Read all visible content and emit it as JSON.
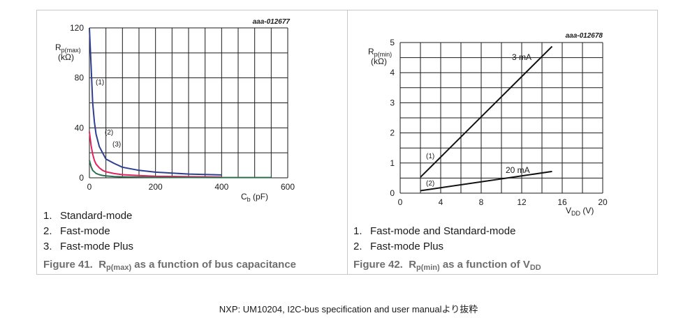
{
  "figures": [
    {
      "id": "fig41",
      "code": "aaa-012677",
      "caption": {
        "prefix": "Figure 41.",
        "sym": "R",
        "sub": "p(max)",
        "rest": " as a function of bus capacitance"
      },
      "legend": [
        {
          "num": "1.",
          "text": "Standard-mode"
        },
        {
          "num": "2.",
          "text": "Fast-mode"
        },
        {
          "num": "3.",
          "text": "Fast-mode Plus"
        }
      ],
      "chart_data": {
        "type": "line",
        "ylabel": {
          "main": "R",
          "sub": "p(max)",
          "unit": "(kΩ)"
        },
        "xlabel": {
          "main": "C",
          "sub": "b",
          "unit": " (pF)"
        },
        "xlim": [
          0,
          600
        ],
        "ylim": [
          0,
          120
        ],
        "xticks": [
          0,
          200,
          400,
          600
        ],
        "yticks": [
          0,
          40,
          80,
          120
        ],
        "xgrid": [
          0,
          50,
          100,
          150,
          200,
          250,
          300,
          350,
          400,
          450,
          500,
          550,
          600
        ],
        "ygrid": [
          0,
          20,
          40,
          60,
          80,
          100,
          120
        ],
        "grid": true,
        "series": [
          {
            "label": "(1)",
            "color": "#2e3f8f",
            "x": [
              0,
              5,
              10,
              15,
              20,
              30,
              40,
              50,
              75,
              100,
              150,
              200,
              300,
              400
            ],
            "y": [
              120,
              90,
              60,
              45,
              35,
              25,
              20,
              15,
              11.5,
              8.5,
              6,
              4.5,
              3,
              2.3
            ]
          },
          {
            "label": "(2)",
            "color": "#e0245e",
            "x": [
              0,
              5,
              10,
              15,
              20,
              30,
              40,
              50,
              75,
              100,
              150,
              200,
              300,
              400
            ],
            "y": [
              37,
              26,
              19,
              14,
              11,
              8,
              6,
              4.8,
              3.4,
              2.5,
              1.8,
              1.3,
              0.9,
              0.6
            ]
          },
          {
            "label": "(3)",
            "color": "#2f6b4f",
            "x": [
              0,
              5,
              10,
              20,
              30,
              40,
              50,
              75,
              100,
              150,
              200,
              300,
              400,
              550
            ],
            "y": [
              14,
              9,
              6,
              3.5,
              2.5,
              1.9,
              1.5,
              1.0,
              0.8,
              0.55,
              0.4,
              0.3,
              0.25,
              0.2
            ]
          }
        ]
      }
    },
    {
      "id": "fig42",
      "code": "aaa-012678",
      "caption": {
        "prefix": "Figure 42.",
        "sym": "R",
        "sub": "p(min)",
        "rest": " as a function of V",
        "sub2": "DD"
      },
      "legend": [
        {
          "num": "1.",
          "text": "Fast-mode and Standard-mode"
        },
        {
          "num": "2.",
          "text": "Fast-mode Plus"
        }
      ],
      "chart_data": {
        "type": "line",
        "ylabel": {
          "main": "R",
          "sub": "p(min)",
          "unit": "(kΩ)"
        },
        "xlabel": {
          "main": "V",
          "sub": "DD",
          "unit": " (V)"
        },
        "xlim": [
          0,
          20
        ],
        "ylim": [
          0,
          5
        ],
        "xticks": [
          0,
          4,
          8,
          12,
          16,
          20
        ],
        "yticks": [
          0,
          1,
          2,
          3,
          4,
          5
        ],
        "xgrid": [
          0,
          2,
          4,
          6,
          8,
          10,
          12,
          14,
          16,
          18,
          20
        ],
        "ygrid": [
          0,
          0.5,
          1,
          1.5,
          2,
          2.5,
          3,
          3.5,
          4,
          4.5,
          5
        ],
        "grid": true,
        "series": [
          {
            "label": "(1)",
            "annotation": "3 mA",
            "color": "#111111",
            "x": [
              2.0,
              15.0
            ],
            "y": [
              0.53,
              4.87
            ]
          },
          {
            "label": "(2)",
            "annotation": "20 mA",
            "color": "#111111",
            "x": [
              2.0,
              15.0
            ],
            "y": [
              0.08,
              0.72
            ]
          }
        ]
      }
    }
  ],
  "footer": "NXP: UM10204, I2C-bus specification and user manualより抜粋"
}
